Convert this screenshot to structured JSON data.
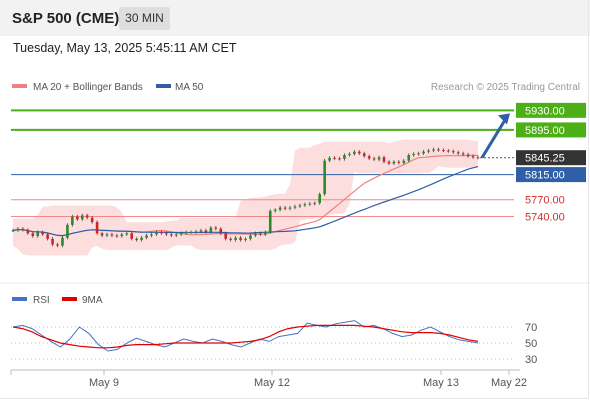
{
  "header": {
    "title": "S&P 500 (CME)",
    "interval": "30 MIN"
  },
  "timestamp": "Tuesday, May 13, 2025 5:45:11 AM CET",
  "colors": {
    "resistance": "#4caf18",
    "support": "#f08a8a",
    "ma50": "#2e5fa8",
    "bollinger_fill": "#fcd3d3",
    "ma20": "#f08080",
    "rsi": "#4472c4",
    "rsi_ma": "#e00000",
    "price_label": "#333333",
    "arrow": "#2e5fa8"
  },
  "chart_data": [
    {
      "type": "line",
      "title": "",
      "credit": "Research © 2025 Trading Central",
      "legend": [
        {
          "name": "MA 20 + Bollinger Bands",
          "color": "#f08080"
        },
        {
          "name": "MA 50",
          "color": "#2e5fa8"
        }
      ],
      "levels": [
        {
          "value": 5930.0,
          "label": "5930.00",
          "kind": "resistance"
        },
        {
          "value": 5895.0,
          "label": "5895.00",
          "kind": "resistance"
        },
        {
          "value": 5845.25,
          "label": "5845.25",
          "kind": "last"
        },
        {
          "value": 5815.0,
          "label": "5815.00",
          "kind": "pivot"
        },
        {
          "value": 5770.0,
          "label": "5770.00",
          "kind": "support"
        },
        {
          "value": 5740.0,
          "label": "5740.00",
          "kind": "support"
        }
      ],
      "x_tick_labels": [
        "May 9",
        "May 12",
        "May 13",
        "May 22"
      ],
      "arrow": {
        "from_value": 5845.25,
        "to_value": 5930.0,
        "direction": "up"
      },
      "series": [
        {
          "name": "price",
          "values": [
            5715,
            5718,
            5716,
            5710,
            5705,
            5712,
            5708,
            5700,
            5690,
            5688,
            5702,
            5725,
            5740,
            5735,
            5742,
            5738,
            5730,
            5710,
            5706,
            5708,
            5706,
            5705,
            5708,
            5710,
            5700,
            5698,
            5702,
            5706,
            5708,
            5712,
            5710,
            5708,
            5706,
            5708,
            5710,
            5712,
            5712,
            5713,
            5715,
            5712,
            5720,
            5718,
            5710,
            5700,
            5698,
            5702,
            5698,
            5700,
            5706,
            5710,
            5708,
            5712,
            5750,
            5752,
            5756,
            5754,
            5756,
            5758,
            5760,
            5762,
            5763,
            5764,
            5780,
            5840,
            5845,
            5844,
            5843,
            5850,
            5852,
            5856,
            5853,
            5848,
            5844,
            5842,
            5846,
            5838,
            5835,
            5838,
            5836,
            5840,
            5850,
            5852,
            5853,
            5856,
            5858,
            5860,
            5859,
            5858,
            5857,
            5855,
            5853,
            5851,
            5848,
            5846,
            5845.25
          ]
        },
        {
          "name": "MA 20",
          "values": [
            5713,
            5812,
            5845,
            5853
          ]
        },
        {
          "name": "MA 50",
          "values": [
            5700,
            5704,
            5706,
            5710,
            5760,
            5808,
            5842
          ]
        }
      ]
    },
    {
      "type": "line",
      "title": "",
      "legend": [
        {
          "name": "RSI",
          "color": "#4472c4"
        },
        {
          "name": "9MA",
          "color": "#e00000"
        }
      ],
      "yticks": [
        70,
        50,
        30
      ],
      "ylim": [
        20,
        80
      ],
      "series": [
        {
          "name": "RSI",
          "values": [
            70,
            72,
            68,
            60,
            52,
            45,
            55,
            70,
            62,
            48,
            40,
            42,
            50,
            56,
            52,
            48,
            45,
            50,
            55,
            52,
            50,
            55,
            52,
            48,
            45,
            50,
            55,
            52,
            58,
            60,
            62,
            75,
            72,
            70,
            74,
            76,
            78,
            70,
            72,
            68,
            62,
            58,
            60,
            66,
            70,
            64,
            58,
            54,
            52,
            50
          ]
        },
        {
          "name": "9MA",
          "values": [
            70,
            68,
            64,
            58,
            54,
            50,
            48,
            46,
            45,
            44,
            44,
            45,
            47,
            48,
            48,
            48,
            49,
            50,
            50,
            50,
            50,
            50,
            50,
            50,
            51,
            52,
            54,
            58,
            64,
            68,
            70,
            71,
            72,
            72,
            72,
            72,
            72,
            71,
            70,
            68,
            66,
            64,
            63,
            63,
            63,
            62,
            60,
            57,
            54,
            52
          ]
        }
      ]
    }
  ]
}
